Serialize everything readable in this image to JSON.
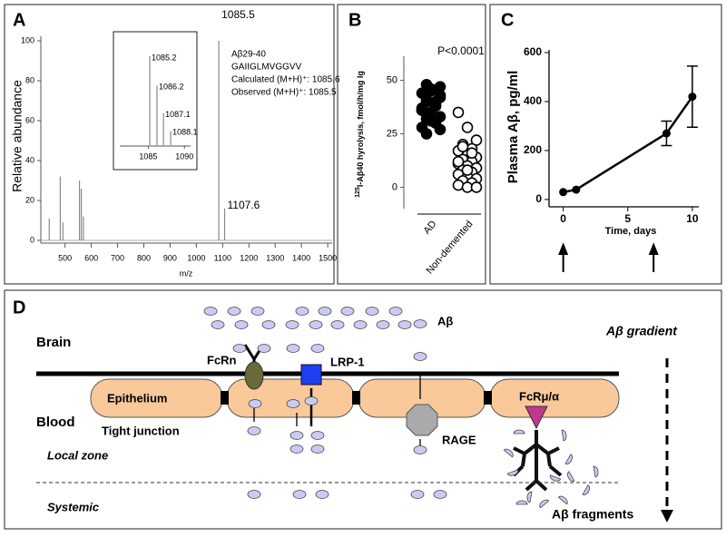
{
  "chart_data": [
    {
      "type": "stem",
      "panel": "A",
      "xlabel": "m/z",
      "ylabel": "Relative abundance",
      "x": [
        440,
        482,
        492,
        555,
        562,
        570,
        1085.5,
        1107.6
      ],
      "values": [
        11,
        32,
        9,
        30,
        26,
        12,
        100,
        16
      ],
      "labeled_peaks": [
        1085.5,
        1107.6
      ],
      "color": "#888888",
      "xlim": [
        408,
        1510
      ],
      "xticks": [
        500,
        600,
        700,
        800,
        900,
        1000,
        1100,
        1200,
        1300,
        1400,
        1500
      ],
      "ylim": [
        0,
        100
      ],
      "yticks": [
        0,
        20,
        40,
        60,
        80,
        100
      ],
      "annotations": [
        "Aβ29-40",
        "GAIIGLMVGGVV",
        "Calculated (M+H)⁺: 1085.6",
        "Observed (M+H)⁺: 1085.5"
      ]
    },
    {
      "type": "stem",
      "inset": true,
      "x": [
        1085.2,
        1086.2,
        1087.1,
        1088.1
      ],
      "values": [
        100,
        67,
        36,
        16
      ],
      "labeled_peaks": [
        1085.2,
        1086.2,
        1087.1,
        1088.1
      ],
      "color": "#888888",
      "xlim": [
        1080.8,
        1091.1
      ],
      "xticks": [
        1085,
        1090
      ],
      "ylim": [
        0,
        100
      ]
    },
    {
      "type": "strip",
      "panel": "B",
      "ylabel_super": "125",
      "ylabel": "I-Aβ40 hyrolysis, fmol/h/mg Ig",
      "annotation": "P<0.0001",
      "categories": [
        "AD",
        "Non-demented"
      ],
      "series": [
        {
          "name": "AD",
          "color": "#000000",
          "filled": true,
          "values": [
            44,
            46,
            42,
            40,
            38,
            36,
            45,
            47,
            41,
            39,
            37,
            35,
            33,
            32,
            30,
            28,
            34,
            43,
            48,
            38,
            36,
            31,
            27,
            25,
            40
          ]
        },
        {
          "name": "Non-demented",
          "color": "#000000",
          "filled": false,
          "values": [
            35,
            28,
            22,
            20,
            18,
            17,
            15,
            14,
            13,
            12,
            11,
            10,
            9,
            8,
            7,
            6,
            5,
            4,
            3,
            2,
            1,
            0,
            0,
            19,
            16,
            12,
            8
          ]
        }
      ],
      "ylim": [
        -10,
        60
      ],
      "yticks": [
        0,
        25,
        50
      ]
    },
    {
      "type": "line",
      "panel": "C",
      "xlabel": "Time, days",
      "ylabel": "Plasma Aβ, pg/ml",
      "x": [
        0,
        1,
        8,
        10
      ],
      "values": [
        30,
        40,
        270,
        420
      ],
      "errors": [
        0,
        0,
        50,
        125
      ],
      "color": "#000000",
      "arrows_x": [
        0,
        7
      ],
      "xlim": [
        -1.1,
        10.5
      ],
      "xticks": [
        0,
        5,
        10
      ],
      "ylim": [
        -30,
        600
      ],
      "yticks": [
        0,
        200,
        400,
        600
      ]
    }
  ],
  "diagram": {
    "panel": "D",
    "brain": "Brain",
    "blood": "Blood",
    "local_zone": "Local zone",
    "systemic": "Systemic",
    "fcrn": "FcRn",
    "lrp1": "LRP-1",
    "abeta": "Aβ",
    "gradient": "Aβ gradient",
    "epithelium": "Epithelium",
    "tight_junction": "Tight junction",
    "rage": "RAGE",
    "fcr": "FcRμ/α",
    "fragments": "Aβ fragments"
  }
}
